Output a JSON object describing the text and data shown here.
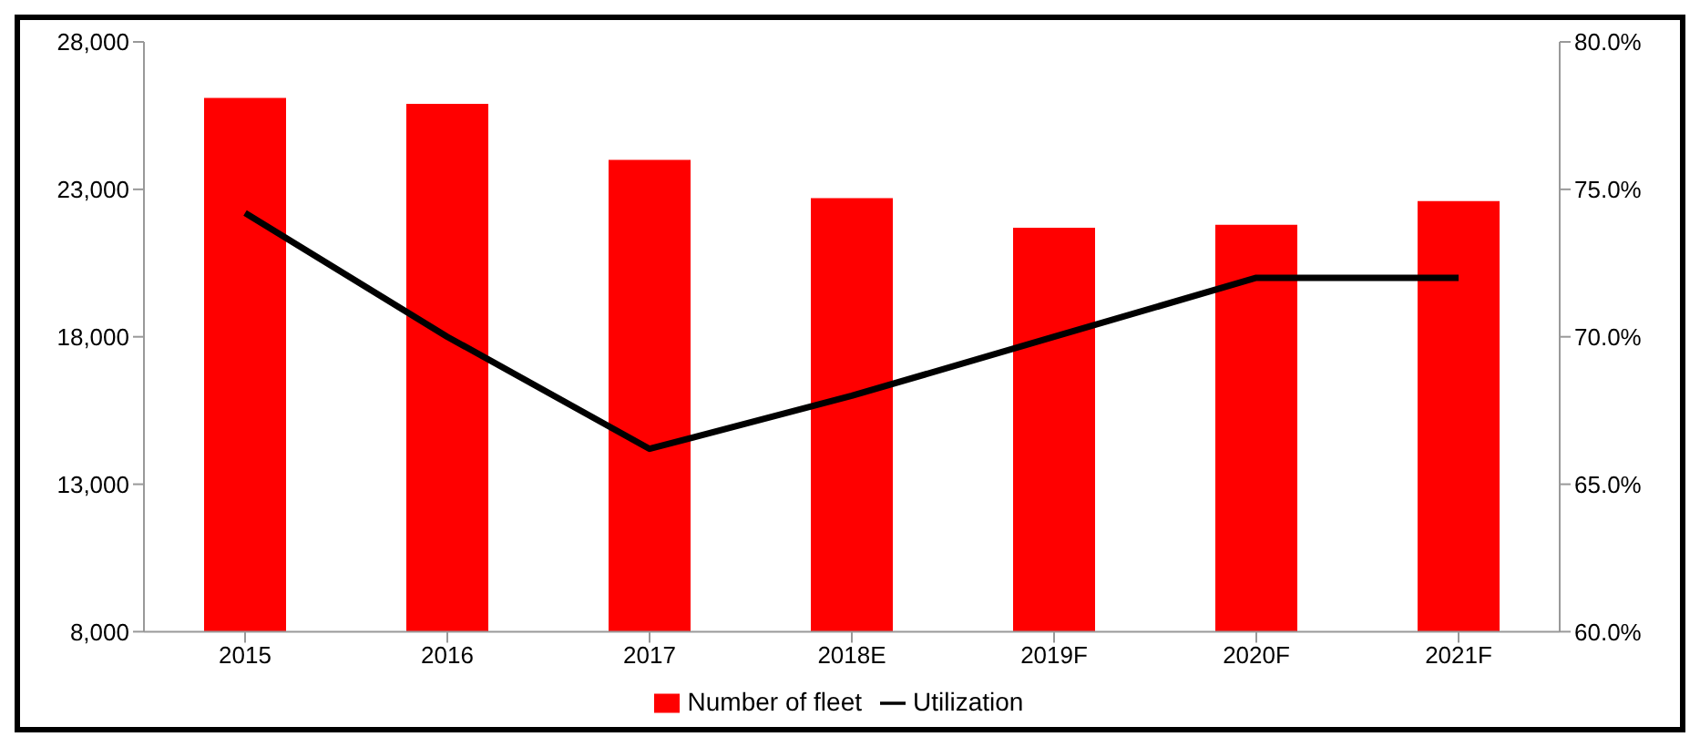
{
  "chart_data": {
    "type": "bar",
    "categories": [
      "2015",
      "2016",
      "2017",
      "2018E",
      "2019F",
      "2020F",
      "2021F"
    ],
    "series": [
      {
        "name": "Number of fleet",
        "color": "#ff0000",
        "values": [
          26100,
          25900,
          24000,
          22700,
          21700,
          21800,
          22600
        ]
      },
      {
        "name": "Utilization",
        "type": "line",
        "axis": "y2",
        "color": "#000000",
        "values": [
          74.2,
          70.0,
          66.2,
          68.0,
          70.0,
          72.0,
          72.0
        ]
      }
    ],
    "ylim": [
      8000,
      28000
    ],
    "yticks": [
      {
        "value": 8000,
        "label": "8,000"
      },
      {
        "value": 13000,
        "label": "13,000"
      },
      {
        "value": 18000,
        "label": "18,000"
      },
      {
        "value": 23000,
        "label": "23,000"
      },
      {
        "value": 28000,
        "label": "28,000"
      }
    ],
    "y2lim": [
      60,
      80
    ],
    "y2ticks": [
      {
        "value": 60,
        "label": "60.0%"
      },
      {
        "value": 65,
        "label": "65.0%"
      },
      {
        "value": 70,
        "label": "70.0%"
      },
      {
        "value": 75,
        "label": "75.0%"
      },
      {
        "value": 80,
        "label": "80.0%"
      }
    ],
    "grid": false,
    "legend": "bottom",
    "marker": "none",
    "line_style": "solid"
  }
}
